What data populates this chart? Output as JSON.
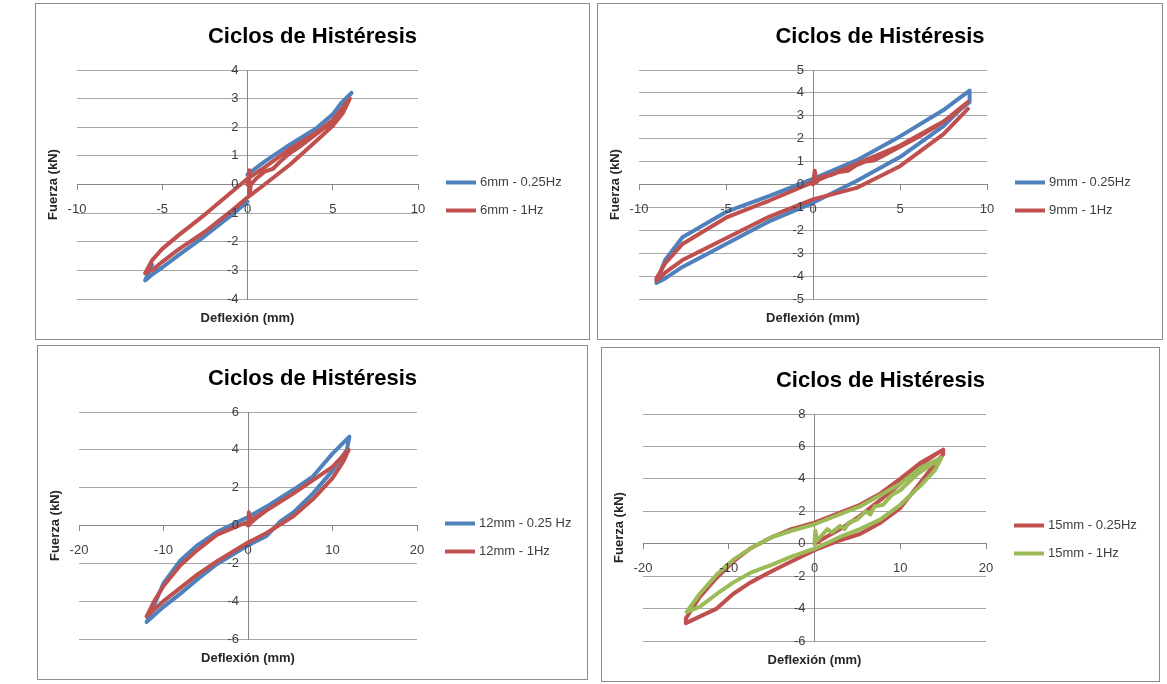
{
  "chart_data": [
    {
      "type": "line",
      "title": "Ciclos de Histéresis",
      "xlabel": "Deflexión (mm)",
      "ylabel": "Fuerza (kN)",
      "xlim": [
        -10,
        10
      ],
      "xticks": [
        -10,
        -5,
        0,
        5,
        10
      ],
      "ylim": [
        -4,
        4
      ],
      "yticks": [
        -4,
        -3,
        -2,
        -1,
        0,
        1,
        2,
        3,
        4
      ],
      "grid": "y",
      "legend": "right",
      "series": [
        {
          "name": "6mm - 0.25Hz",
          "color": "#4f81bd",
          "x": [
            6.1,
            5.5,
            5,
            4,
            2.5,
            1,
            0,
            -1,
            -2.5,
            -4,
            -5,
            -5.6,
            -6,
            -5.5,
            -5,
            -4,
            -2.5,
            -1,
            0,
            1,
            2.5,
            4,
            5,
            5.6,
            6.1
          ],
          "values": [
            3.2,
            2.85,
            2.45,
            1.95,
            1.4,
            0.8,
            0.35,
            null,
            null,
            null,
            null,
            -2.8,
            -3.35,
            -3.1,
            -2.9,
            -2.45,
            -1.8,
            -1.1,
            -0.6,
            null,
            null,
            null,
            null,
            2.85,
            3.2
          ]
        },
        {
          "name": "6mm - 1Hz",
          "color": "#c0504d",
          "x": [
            0,
            0.1,
            0.1,
            0.2,
            0.5,
            1,
            1.5,
            2,
            2.5,
            3,
            4,
            5,
            6,
            5,
            4,
            2.5,
            1,
            0,
            -1,
            -2.5,
            -4,
            -5,
            -5.6,
            -6,
            -5.5,
            -5,
            -4,
            -2.5,
            -1,
            0,
            1,
            2.5,
            4,
            5,
            5.6,
            6
          ],
          "values": [
            0,
            0.5,
            -0.4,
            0,
            0.2,
            0.45,
            0.55,
            0.85,
            1.1,
            1.3,
            1.75,
            2.2,
            3,
            2.25,
            1.8,
            1.25,
            0.6,
            0.2,
            -0.3,
            -1.05,
            -1.75,
            -2.25,
            -2.65,
            -3.1,
            -2.95,
            -2.7,
            -2.25,
            -1.65,
            -0.95,
            -0.45,
            0,
            0.7,
            1.5,
            2.05,
            2.5,
            3
          ]
        }
      ]
    },
    {
      "type": "line",
      "title": "Ciclos de Histéresis",
      "xlabel": "Deflexión (mm)",
      "ylabel": "Fuerza (kN)",
      "xlim": [
        -10,
        10
      ],
      "xticks": [
        -10,
        -5,
        0,
        5,
        10
      ],
      "ylim": [
        -5,
        5
      ],
      "yticks": [
        -5,
        -4,
        -3,
        -2,
        -1,
        0,
        1,
        2,
        3,
        4,
        5
      ],
      "grid": "y",
      "legend": "right",
      "series": [
        {
          "name": "9mm - 0.25Hz",
          "color": "#4f81bd",
          "x": [
            5,
            2.5,
            0,
            -2.5,
            -5,
            -7.5,
            -8.5,
            -9,
            -8.5,
            -7.5,
            -5,
            -2.5,
            0,
            2.5,
            5,
            7.5,
            8.5,
            9,
            9,
            8.2,
            7.5,
            5,
            2.5
          ],
          "values": [
            2.1,
            1.05,
            0.25,
            -0.5,
            -1.2,
            -2.3,
            -3.3,
            -4.3,
            -4.1,
            -3.6,
            -2.6,
            -1.6,
            -0.8,
            0.15,
            1.2,
            2.55,
            3.3,
            3.6,
            4.1,
            3.65,
            3.25,
            2.1,
            1.05
          ]
        },
        {
          "name": "9mm - 1Hz",
          "color": "#c0504d",
          "x": [
            0,
            0.1,
            0.2,
            0.5,
            1,
            1.5,
            2,
            2.5,
            3,
            3.5,
            4,
            5,
            6,
            7,
            8,
            8.9,
            7.5,
            5,
            2.5,
            0,
            -2.5,
            -5,
            -7.5,
            -8.5,
            -9,
            -9,
            -8.5,
            -7.5,
            -5,
            -2.5,
            0,
            2.5,
            5,
            7.5,
            8.9
          ],
          "values": [
            0,
            0.6,
            0.1,
            0.35,
            0.4,
            0.55,
            0.6,
            0.85,
            1,
            1.05,
            1.25,
            1.65,
            2.05,
            2.5,
            3,
            3.6,
            2.75,
            1.7,
            0.9,
            0.1,
            -0.7,
            -1.45,
            -2.6,
            -3.45,
            -4.1,
            -4.2,
            -3.85,
            -3.3,
            -2.35,
            -1.4,
            -0.65,
            -0.15,
            0.8,
            2.2,
            3.3
          ]
        }
      ]
    },
    {
      "type": "line",
      "title": "Ciclos de Histéresis",
      "xlabel": "Deflexión (mm)",
      "ylabel": "Fuerza (kN)",
      "xlim": [
        -20,
        20
      ],
      "xticks": [
        -20,
        -10,
        0,
        10,
        20
      ],
      "ylim": [
        -6,
        6
      ],
      "yticks": [
        -6,
        -4,
        -2,
        0,
        2,
        4,
        6
      ],
      "grid": "y",
      "legend": "right",
      "series": [
        {
          "name": "12mm - 0.25 Hz",
          "color": "#4f81bd",
          "x": [
            5.4,
            2.2,
            0,
            -3.7,
            -6,
            -8,
            -10,
            -11.1,
            -12,
            -10,
            -8,
            -6,
            -3.7,
            0,
            2.2,
            3.8,
            5.4,
            7.7,
            10,
            11.7,
            12,
            10,
            7.7,
            5.4,
            2.2
          ],
          "values": [
            1.9,
            1,
            0.45,
            -0.35,
            -1.05,
            -1.85,
            -3.05,
            -4.2,
            -5.1,
            -4.3,
            -3.6,
            -2.85,
            -2.05,
            -1.05,
            -0.55,
            0.2,
            0.7,
            1.7,
            2.9,
            4,
            4.7,
            3.8,
            2.6,
            1.9,
            1
          ]
        },
        {
          "name": "12mm - 1Hz",
          "color": "#c0504d",
          "x": [
            0,
            0.1,
            0.2,
            1,
            2.2,
            5.4,
            7.7,
            10,
            11.9,
            10,
            7.7,
            5.4,
            2.2,
            0,
            -3.7,
            -6,
            -8,
            -10,
            -11.1,
            -12,
            -10,
            -8,
            -6,
            -3.7,
            0,
            2.2,
            5.4,
            7.7,
            10,
            11.3,
            11.9
          ],
          "values": [
            0,
            0.7,
            0.1,
            0.4,
            0.8,
            1.7,
            2.4,
            3.1,
            4,
            3.1,
            2.4,
            1.7,
            0.8,
            0.2,
            -0.5,
            -1.3,
            -2.1,
            -3.2,
            -4,
            -4.8,
            -4,
            -3.3,
            -2.6,
            -1.9,
            -0.9,
            -0.4,
            0.5,
            1.4,
            2.5,
            3.4,
            4
          ]
        }
      ]
    },
    {
      "type": "line",
      "title": "Ciclos de Histéresis",
      "xlabel": "Deflexión (mm)",
      "ylabel": "Fuerza (kN)",
      "xlim": [
        -20,
        20
      ],
      "xticks": [
        -20,
        -10,
        0,
        10,
        20
      ],
      "ylim": [
        -6,
        8
      ],
      "yticks": [
        -6,
        -4,
        -2,
        0,
        2,
        4,
        6,
        8
      ],
      "grid": "y",
      "legend": "right",
      "series": [
        {
          "name": "15mm - 0.25Hz",
          "color": "#c0504d",
          "x": [
            0,
            1,
            3,
            5,
            7.7,
            10,
            12.4,
            15,
            12.4,
            10,
            7.7,
            5.3,
            0,
            -2.7,
            -5,
            -7.5,
            -9.5,
            -11.4,
            -13.4,
            -15,
            -15,
            -13.4,
            -11.4,
            -9.5,
            -7.5,
            -5,
            -2.7,
            0,
            2.9,
            5.3,
            7.7,
            10,
            12.4,
            14,
            15,
            15
          ],
          "values": [
            0,
            0.3,
            0.9,
            1.6,
            2.7,
            3.7,
            4.9,
            5.8,
            5,
            4,
            3.1,
            2.4,
            1.3,
            0.9,
            0.4,
            -0.3,
            -1.1,
            -2.1,
            -3.3,
            -4.6,
            -4.9,
            -4.5,
            -4,
            -3.1,
            -2.4,
            -1.7,
            -1.1,
            -0.4,
            0.2,
            0.6,
            1.3,
            2.2,
            3.8,
            4.9,
            5.5,
            5.8
          ]
        },
        {
          "name": "15mm - 1Hz",
          "color": "#9bbb59",
          "x": [
            0,
            0.1,
            0.3,
            1,
            1.5,
            2,
            3,
            3.5,
            4,
            5,
            6,
            6.5,
            7,
            8,
            9,
            10,
            12,
            14.8,
            12.4,
            10,
            7.7,
            5.3,
            0,
            -2.7,
            -5,
            -7.5,
            -9.5,
            -11.4,
            -13.4,
            -14.9,
            -13.4,
            -11.4,
            -9.5,
            -7.5,
            -5,
            -2.7,
            0,
            2.9,
            5.3,
            7.7,
            10,
            12.4,
            14,
            14.8
          ],
          "values": [
            0,
            0.8,
            0.2,
            0.6,
            0.9,
            0.7,
            1.1,
            0.9,
            1.3,
            1.5,
            2,
            1.8,
            2.3,
            2.4,
            3,
            3.3,
            4.3,
            5.3,
            4.7,
            3.7,
            3,
            2.3,
            1.2,
            0.8,
            0.4,
            -0.3,
            -1,
            -1.9,
            -3.1,
            -4.2,
            -3.9,
            -3.1,
            -2.4,
            -1.8,
            -1.3,
            -0.8,
            -0.3,
            0.4,
            0.9,
            1.5,
            2.4,
            3.6,
            4.5,
            5.3
          ]
        }
      ]
    }
  ]
}
